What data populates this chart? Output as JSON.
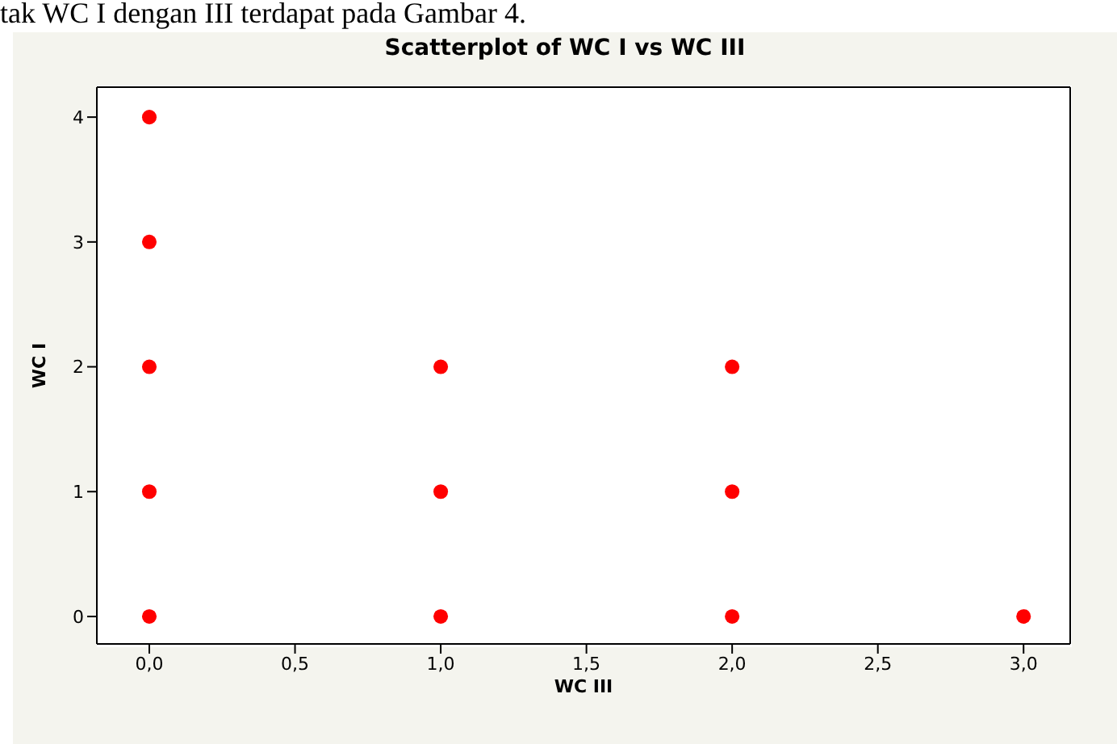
{
  "chart_data": {
    "type": "scatter",
    "title": "Scatterplot of WC I vs WC III",
    "xlabel": "WC III",
    "ylabel": "WC I",
    "annotations": [
      "tak WC I dengan III terdapat pada Gambar 4."
    ],
    "x": [
      0,
      0,
      0,
      0,
      0,
      1,
      1,
      1,
      2,
      2,
      2,
      3
    ],
    "values": [
      0,
      1,
      2,
      3,
      4,
      0,
      1,
      2,
      0,
      1,
      2,
      0
    ],
    "color": "#ff0000",
    "marker": "circle",
    "legend": false,
    "xlim": [
      -0.18,
      3.16
    ],
    "xticks": [
      {
        "value": 0,
        "label": "0,0"
      },
      {
        "value": 0.5,
        "label": "0,5"
      },
      {
        "value": 1,
        "label": "1,0"
      },
      {
        "value": 1.5,
        "label": "1,5"
      },
      {
        "value": 2,
        "label": "2,0"
      },
      {
        "value": 2.5,
        "label": "2,5"
      },
      {
        "value": 3,
        "label": "3,0"
      }
    ],
    "ylim": [
      -0.22,
      4.24
    ],
    "yticks": [
      0,
      1,
      2,
      3,
      4
    ]
  }
}
